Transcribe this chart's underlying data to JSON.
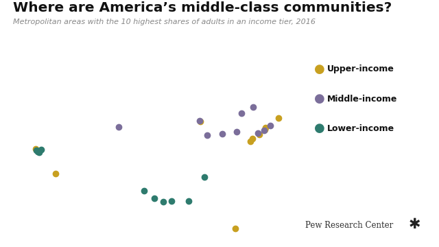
{
  "title": "Where are America’s middle-class communities?",
  "subtitle": "Metropolitan areas with the 10 highest shares of adults in an income tier, 2016",
  "background_color": "#ffffff",
  "map_facecolor": "#eeeee8",
  "map_edgecolor": "#c0c0b8",
  "upper_color": "#c8a020",
  "middle_color": "#7b6e9a",
  "lower_color": "#2e7b6e",
  "marker_size": 55,
  "legend_labels": [
    "Upper-income",
    "Middle-income",
    "Lower-income"
  ],
  "attribution": "Pew Research Center",
  "upper_income_points": [
    [
      -122.4,
      37.8
    ],
    [
      -118.2,
      34.05
    ],
    [
      -87.6,
      41.9
    ],
    [
      -80.2,
      25.8
    ],
    [
      -75.1,
      39.9
    ],
    [
      -77.0,
      38.9
    ],
    [
      -76.6,
      39.3
    ],
    [
      -74.0,
      40.7
    ],
    [
      -71.1,
      42.4
    ],
    [
      -73.8,
      41.0
    ]
  ],
  "middle_income_points": [
    [
      -104.9,
      41.1
    ],
    [
      -87.8,
      42.0
    ],
    [
      -86.2,
      39.8
    ],
    [
      -83.0,
      40.0
    ],
    [
      -80.0,
      40.4
    ],
    [
      -79.0,
      43.1
    ],
    [
      -75.5,
      40.1
    ],
    [
      -74.2,
      40.6
    ],
    [
      -72.9,
      41.3
    ],
    [
      -76.5,
      44.1
    ]
  ],
  "lower_income_points": [
    [
      -122.3,
      37.55
    ],
    [
      -122.05,
      37.35
    ],
    [
      -121.75,
      37.25
    ],
    [
      -121.3,
      37.7
    ],
    [
      -99.5,
      31.5
    ],
    [
      -97.3,
      30.3
    ],
    [
      -95.4,
      29.8
    ],
    [
      -93.7,
      29.95
    ],
    [
      -90.1,
      29.95
    ],
    [
      -86.8,
      33.5
    ]
  ],
  "map_extent": [
    -125,
    -66,
    23,
    50
  ]
}
